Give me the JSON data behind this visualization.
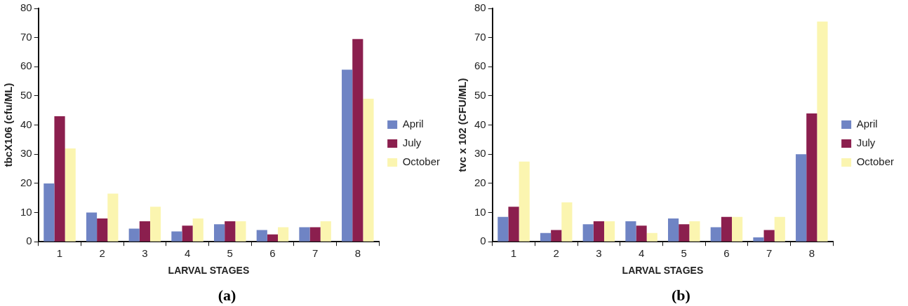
{
  "chart_data": [
    {
      "type": "bar",
      "xlabel": "LARVAL STAGES",
      "ylabel": "tbcX106 (cfu/ML)",
      "categories": [
        "1",
        "2",
        "3",
        "4",
        "5",
        "6",
        "7",
        "8"
      ],
      "series": [
        {
          "name": "April",
          "color": "#6f84c4",
          "values": [
            20,
            10,
            4.5,
            3.5,
            6,
            4,
            5,
            59
          ]
        },
        {
          "name": "July",
          "color": "#8b1f4e",
          "values": [
            43,
            8,
            7,
            5.5,
            7,
            2.5,
            5,
            69.5
          ]
        },
        {
          "name": "October",
          "color": "#fbf5b0",
          "values": [
            32,
            16.5,
            12,
            8,
            7,
            5,
            7,
            49
          ]
        }
      ],
      "ylim": [
        0,
        80
      ],
      "yticks": [
        0,
        10,
        20,
        30,
        40,
        50,
        60,
        70,
        80
      ],
      "grid": false,
      "legend": "right",
      "annotations": [
        "(a)"
      ]
    },
    {
      "type": "bar",
      "xlabel": "LARVAL STAGES",
      "ylabel": "tvc x 102 (CFU/ML)",
      "categories": [
        "1",
        "2",
        "3",
        "4",
        "5",
        "6",
        "7",
        "8"
      ],
      "series": [
        {
          "name": "April",
          "color": "#6f84c4",
          "values": [
            8.5,
            3,
            6,
            7,
            8,
            5,
            1.5,
            30
          ]
        },
        {
          "name": "July",
          "color": "#8b1f4e",
          "values": [
            12,
            4,
            7,
            5.5,
            6,
            8.5,
            4,
            44
          ]
        },
        {
          "name": "October",
          "color": "#fbf5b0",
          "values": [
            27.5,
            13.5,
            7,
            3,
            7,
            8.5,
            8.5,
            75.5
          ]
        }
      ],
      "ylim": [
        0,
        80
      ],
      "yticks": [
        0,
        10,
        20,
        30,
        40,
        50,
        60,
        70,
        80
      ],
      "grid": false,
      "legend": "right",
      "annotations": [
        "(b)"
      ]
    }
  ]
}
